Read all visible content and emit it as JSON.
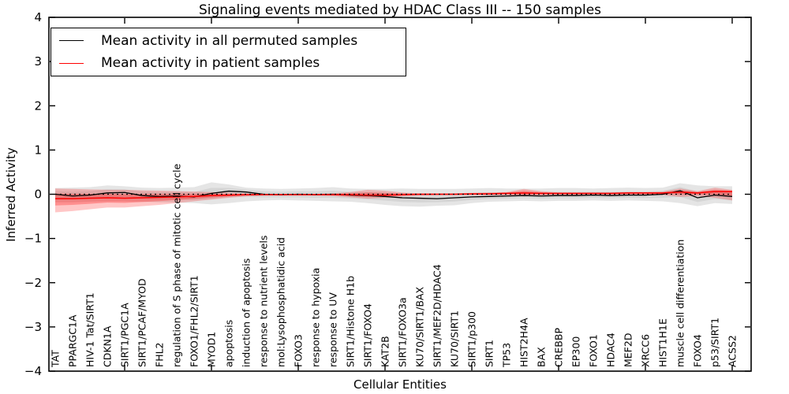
{
  "title": "Signaling events mediated by HDAC Class III -- 150 samples",
  "axes": {
    "ylabel": "Inferred Activity",
    "xlabel": "Cellular Entities",
    "ytick_values": [
      4,
      3,
      2,
      1,
      0,
      -1,
      -2,
      -3,
      -4
    ],
    "ytick_labels": [
      "4",
      "3",
      "2",
      "1",
      "0",
      "−1",
      "−2",
      "−3",
      "−4"
    ],
    "ylim": [
      -4,
      4
    ]
  },
  "legend": {
    "entries": [
      {
        "label": "Mean activity in all permuted samples",
        "color": "#000000"
      },
      {
        "label": "Mean activity in patient samples",
        "color": "#ff0000"
      }
    ]
  },
  "chart_data": {
    "type": "line",
    "title": "Signaling events mediated by HDAC Class III -- 150 samples",
    "xlabel": "Cellular Entities",
    "ylabel": "Inferred Activity",
    "ylim": [
      -4,
      4
    ],
    "grid": false,
    "legend_position": "upper left",
    "categories": [
      "TAT",
      "PPARGC1A",
      "HIV-1 Tat/SIRT1",
      "CDKN1A",
      "SIRT1/PGC1A",
      "SIRT1/PCAF/MYOD",
      "FHL2",
      "regulation of S phase of mitotic cell cycle",
      "FOXO1/FHL2/SIRT1",
      "MYOD1",
      "apoptosis",
      "induction of apoptosis",
      "response to nutrient levels",
      "mol:Lysophosphatidic acid",
      "FOXO3",
      "response to hypoxia",
      "response to UV",
      "SIRT1/Histone H1b",
      "SIRT1/FOXO4",
      "KAT2B",
      "SIRT1/FOXO3a",
      "KU70/SIRT1/BAX",
      "SIRT1/MEF2D/HDAC4",
      "KU70/SIRT1",
      "SIRT1/p300",
      "SIRT1",
      "TP53",
      "HIST2H4A",
      "BAX",
      "CREBBP",
      "EP300",
      "FOXO1",
      "HDAC4",
      "MEF2D",
      "XRCC6",
      "HIST1H1E",
      "muscle cell differentiation",
      "FOXO4",
      "p53/SIRT1",
      "ACSS2"
    ],
    "series": [
      {
        "name": "Mean activity in all permuted samples",
        "color": "#000000",
        "style": "solid",
        "values": [
          0.0,
          -0.04,
          -0.02,
          0.03,
          0.04,
          -0.03,
          -0.05,
          -0.04,
          -0.06,
          0.02,
          0.07,
          0.05,
          0.0,
          -0.01,
          0.0,
          -0.01,
          0.0,
          -0.02,
          -0.03,
          -0.05,
          -0.08,
          -0.09,
          -0.1,
          -0.08,
          -0.06,
          -0.05,
          -0.04,
          -0.03,
          -0.04,
          -0.03,
          -0.03,
          -0.02,
          -0.03,
          -0.02,
          -0.02,
          0.0,
          0.08,
          -0.08,
          -0.02,
          -0.05
        ]
      },
      {
        "name": "Mean activity in patient samples",
        "color": "#ff0000",
        "style": "solid",
        "values": [
          -0.1,
          -0.1,
          -0.09,
          -0.08,
          -0.09,
          -0.08,
          -0.07,
          -0.06,
          -0.05,
          -0.03,
          -0.02,
          -0.01,
          -0.01,
          -0.01,
          -0.01,
          -0.01,
          -0.01,
          -0.01,
          -0.02,
          -0.02,
          -0.01,
          0.0,
          0.0,
          0.0,
          0.01,
          0.01,
          0.02,
          0.03,
          0.02,
          0.02,
          0.02,
          0.02,
          0.02,
          0.03,
          0.03,
          0.03,
          0.05,
          0.03,
          0.06,
          0.06
        ]
      }
    ],
    "bands": [
      {
        "name": "permuted activity spread",
        "color": "#888888",
        "mean_ref": 0,
        "upper": [
          0.14,
          0.15,
          0.16,
          0.2,
          0.18,
          0.15,
          0.14,
          0.15,
          0.16,
          0.27,
          0.22,
          0.15,
          0.13,
          0.12,
          0.13,
          0.14,
          0.16,
          0.13,
          0.12,
          0.12,
          0.13,
          0.12,
          0.12,
          0.12,
          0.13,
          0.14,
          0.13,
          0.13,
          0.13,
          0.14,
          0.14,
          0.13,
          0.14,
          0.15,
          0.14,
          0.15,
          0.25,
          0.2,
          0.18,
          0.18
        ],
        "lower": [
          -0.18,
          -0.18,
          -0.17,
          -0.16,
          -0.16,
          -0.17,
          -0.18,
          -0.19,
          -0.2,
          -0.23,
          -0.2,
          -0.16,
          -0.14,
          -0.13,
          -0.14,
          -0.15,
          -0.16,
          -0.17,
          -0.2,
          -0.24,
          -0.27,
          -0.28,
          -0.26,
          -0.25,
          -0.2,
          -0.17,
          -0.16,
          -0.15,
          -0.16,
          -0.15,
          -0.15,
          -0.14,
          -0.15,
          -0.14,
          -0.15,
          -0.16,
          -0.2,
          -0.27,
          -0.2,
          -0.22
        ]
      },
      {
        "name": "patient activity spread",
        "color": "#ff0000",
        "mean_ref": 1,
        "upper": [
          0.13,
          0.12,
          0.11,
          0.1,
          0.1,
          0.09,
          0.08,
          0.07,
          0.06,
          0.05,
          0.04,
          0.02,
          0.01,
          0.01,
          0.01,
          0.01,
          0.02,
          0.05,
          0.1,
          0.08,
          0.04,
          0.02,
          0.02,
          0.02,
          0.03,
          0.04,
          0.05,
          0.12,
          0.07,
          0.04,
          0.04,
          0.04,
          0.04,
          0.05,
          0.05,
          0.06,
          0.13,
          0.07,
          0.15,
          0.1
        ],
        "lower": [
          -0.41,
          -0.38,
          -0.34,
          -0.3,
          -0.3,
          -0.27,
          -0.24,
          -0.2,
          -0.16,
          -0.12,
          -0.08,
          -0.05,
          -0.03,
          -0.03,
          -0.03,
          -0.03,
          -0.04,
          -0.07,
          -0.1,
          -0.08,
          -0.05,
          -0.03,
          -0.02,
          -0.02,
          -0.02,
          -0.02,
          -0.02,
          -0.05,
          -0.03,
          -0.02,
          -0.02,
          -0.02,
          -0.02,
          -0.02,
          -0.02,
          -0.02,
          -0.06,
          -0.04,
          -0.08,
          -0.14
        ]
      }
    ],
    "zero_reference_line": {
      "value": 0,
      "color": "#000000",
      "style": "dotted"
    }
  }
}
